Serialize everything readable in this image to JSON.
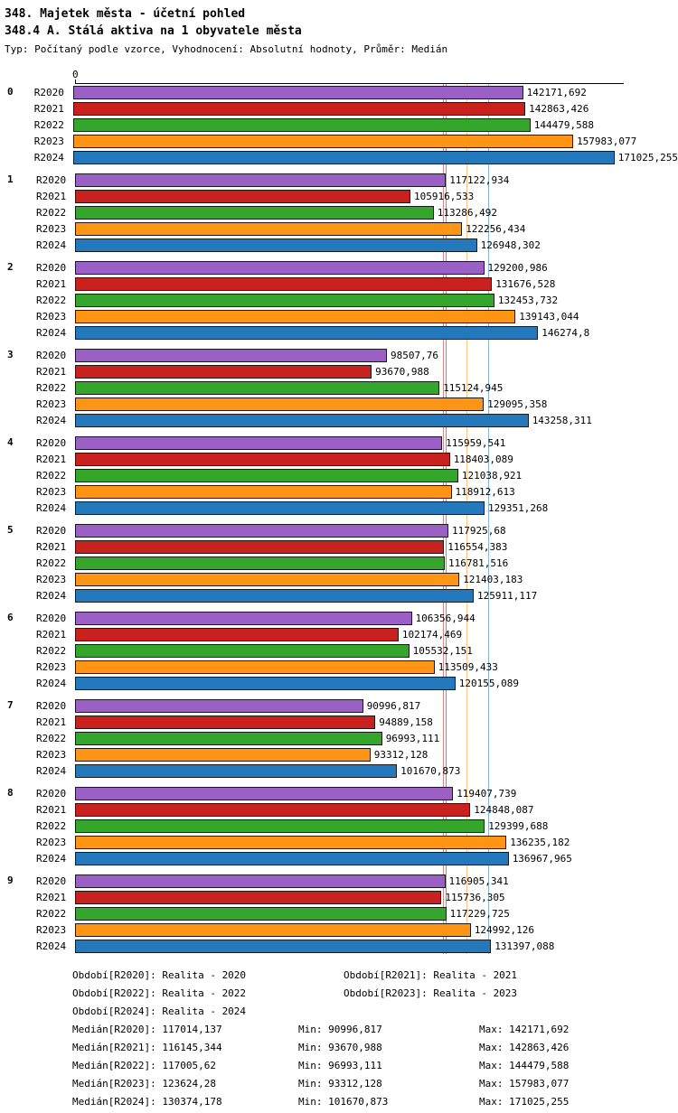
{
  "title": "348. Majetek města - účetní pohled",
  "subtitle": "348.4 A. Stálá aktiva na 1 obyvatele města",
  "meta": "Typ: Počítaný podle vzorce, Vyhodnocení: Absolutní hodnoty, Průměr: Medián",
  "chart_data": {
    "type": "bar",
    "orientation": "horizontal",
    "axis_zero_label": "0",
    "xlim": [
      0,
      171025.255
    ],
    "grid": false,
    "series_labels": [
      "R2020",
      "R2021",
      "R2022",
      "R2023",
      "R2024"
    ],
    "series_colors": [
      "#9a60c6",
      "#c9211e",
      "#35a62c",
      "#ff9514",
      "#2479bd"
    ],
    "medians": [
      "117014,137",
      "116145,344",
      "117005,62",
      "123624,28",
      "130374,178"
    ],
    "groups": [
      {
        "label": "0",
        "values": [
          "142171,692",
          "142863,426",
          "144479,588",
          "157983,077",
          "171025,255"
        ]
      },
      {
        "label": "1",
        "values": [
          "117122,934",
          "105916,533",
          "113286,492",
          "122256,434",
          "126948,302"
        ]
      },
      {
        "label": "2",
        "values": [
          "129200,986",
          "131676,528",
          "132453,732",
          "139143,044",
          "146274,8"
        ]
      },
      {
        "label": "3",
        "values": [
          "98507,76",
          "93670,988",
          "115124,945",
          "129095,358",
          "143258,311"
        ]
      },
      {
        "label": "4",
        "values": [
          "115959,541",
          "118403,089",
          "121038,921",
          "118912,613",
          "129351,268"
        ]
      },
      {
        "label": "5",
        "values": [
          "117925,68",
          "116554,383",
          "116781,516",
          "121403,183",
          "125911,117"
        ]
      },
      {
        "label": "6",
        "values": [
          "106356,944",
          "102174,469",
          "105532,151",
          "113509,433",
          "120155,089"
        ]
      },
      {
        "label": "7",
        "values": [
          "90996,817",
          "94889,158",
          "96993,111",
          "93312,128",
          "101670,873"
        ]
      },
      {
        "label": "8",
        "values": [
          "119407,739",
          "124848,087",
          "129399,688",
          "136235,182",
          "136967,965"
        ]
      },
      {
        "label": "9",
        "values": [
          "116905,341",
          "115736,305",
          "117229,725",
          "124992,126",
          "131397,088"
        ]
      }
    ]
  },
  "footer": {
    "periods": [
      "Období[R2020]: Realita - 2020",
      "Období[R2021]: Realita - 2021",
      "Období[R2022]: Realita - 2022",
      "Období[R2023]: Realita - 2023",
      "Období[R2024]: Realita - 2024"
    ],
    "stats": [
      [
        "Medián[R2020]: 117014,137",
        "Min: 90996,817",
        "Max: 142171,692"
      ],
      [
        "Medián[R2021]: 116145,344",
        "Min: 93670,988",
        "Max: 142863,426"
      ],
      [
        "Medián[R2022]: 117005,62",
        "Min: 96993,111",
        "Max: 144479,588"
      ],
      [
        "Medián[R2023]: 123624,28",
        "Min: 93312,128",
        "Max: 157983,077"
      ],
      [
        "Medián[R2024]: 130374,178",
        "Min: 101670,873",
        "Max: 171025,255"
      ]
    ]
  }
}
